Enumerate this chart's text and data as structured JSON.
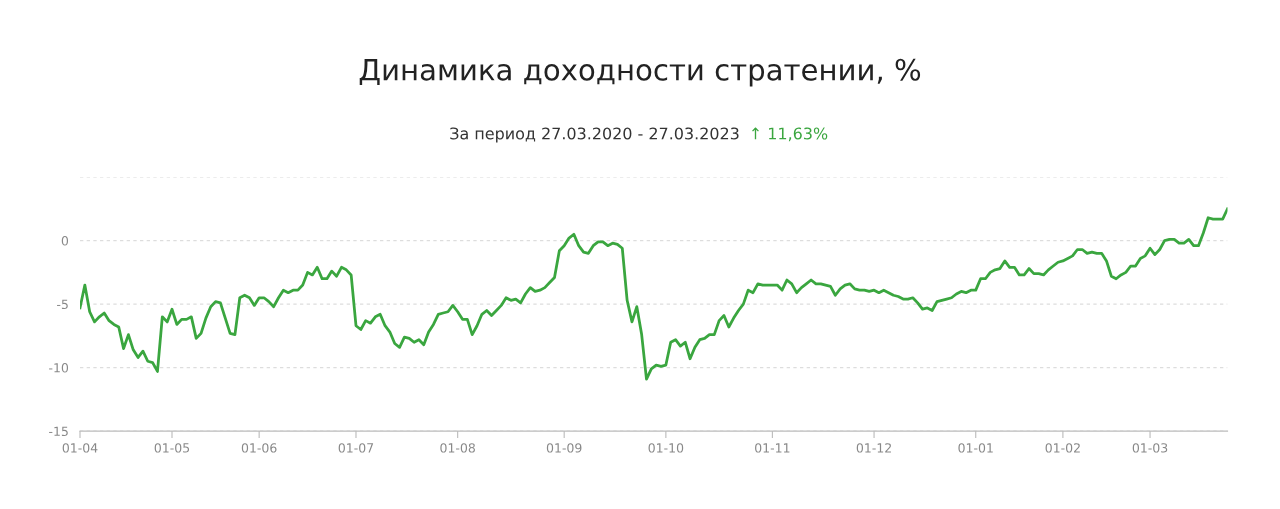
{
  "chart_data": {
    "type": "line",
    "title": "Динамика доходности стратении, %",
    "subtitle": "За период 27.03.2020 - 27.03.2023",
    "annotations": [
      "↑ 11,63%"
    ],
    "categories": [
      "01-04",
      null,
      null,
      null,
      null,
      null,
      null,
      null,
      null,
      null,
      null,
      null,
      null,
      null,
      null,
      null,
      null,
      null,
      null,
      "01-05",
      null,
      null,
      null,
      null,
      null,
      null,
      null,
      null,
      null,
      null,
      null,
      null,
      null,
      null,
      null,
      null,
      null,
      "01-06",
      null,
      null,
      null,
      null,
      null,
      null,
      null,
      null,
      null,
      null,
      null,
      null,
      null,
      null,
      null,
      null,
      null,
      null,
      null,
      "01-07",
      null,
      null,
      null,
      null,
      null,
      null,
      null,
      null,
      null,
      null,
      null,
      null,
      null,
      null,
      null,
      null,
      null,
      null,
      null,
      null,
      "01-08",
      null,
      null,
      null,
      null,
      null,
      null,
      null,
      null,
      null,
      null,
      null,
      null,
      null,
      null,
      null,
      null,
      null,
      null,
      null,
      null,
      null,
      "01-09",
      null,
      null,
      null,
      null,
      null,
      null,
      null,
      null,
      null,
      null,
      null,
      null,
      null,
      null,
      null,
      null,
      null,
      null,
      null,
      null,
      "01-10",
      null,
      null,
      null,
      null,
      null,
      null,
      null,
      null,
      null,
      null,
      null,
      null,
      null,
      null,
      null,
      null,
      null,
      null,
      null,
      null,
      null,
      "01-11",
      null,
      null,
      null,
      null,
      null,
      null,
      null,
      null,
      null,
      null,
      null,
      null,
      null,
      null,
      null,
      null,
      null,
      null,
      null,
      null,
      "01-12",
      null,
      null,
      null,
      null,
      null,
      null,
      null,
      null,
      null,
      null,
      null,
      null,
      null,
      null,
      null,
      null,
      null,
      null,
      null,
      null,
      "01-01",
      null,
      null,
      null,
      null,
      null,
      null,
      null,
      null,
      null,
      null,
      null,
      null,
      null,
      null,
      null,
      null,
      null,
      "01-02",
      null,
      null,
      null,
      null,
      null,
      null,
      null,
      null,
      null,
      null,
      null,
      null,
      null,
      null,
      null,
      null,
      null,
      "01-03",
      null,
      null,
      null,
      null,
      null,
      null,
      null,
      null,
      null,
      null,
      null,
      null,
      null,
      null,
      null,
      null
    ],
    "series": [
      {
        "color": "#3aa63f",
        "values": [
          -5.3,
          -3.5,
          -5.6,
          -6.4,
          -6.0,
          -5.7,
          -6.3,
          -6.6,
          -6.8,
          -8.5,
          -7.4,
          -8.6,
          -9.2,
          -8.7,
          -9.5,
          -9.6,
          -10.3,
          -6.0,
          -6.4,
          -5.4,
          -6.6,
          -6.2,
          -6.2,
          -6.0,
          -7.7,
          -7.3,
          -6.1,
          -5.2,
          -4.8,
          -4.9,
          -6.1,
          -7.3,
          -7.4,
          -4.5,
          -4.3,
          -4.5,
          -5.1,
          -4.5,
          -4.5,
          -4.8,
          -5.2,
          -4.5,
          -3.9,
          -4.1,
          -3.9,
          -3.9,
          -3.5,
          -2.5,
          -2.7,
          -2.1,
          -3.0,
          -3.0,
          -2.4,
          -2.8,
          -2.1,
          -2.3,
          -2.7,
          -6.7,
          -7.0,
          -6.3,
          -6.5,
          -6.0,
          -5.8,
          -6.7,
          -7.2,
          -8.1,
          -8.4,
          -7.6,
          -7.7,
          -8.0,
          -7.8,
          -8.2,
          -7.2,
          -6.6,
          -5.8,
          -5.7,
          -5.6,
          -5.1,
          -5.6,
          -6.2,
          -6.2,
          -7.4,
          -6.7,
          -5.8,
          -5.5,
          -5.9,
          -5.5,
          -5.1,
          -4.5,
          -4.7,
          -4.6,
          -4.9,
          -4.2,
          -3.7,
          -4.0,
          -3.9,
          -3.7,
          -3.3,
          -2.9,
          -0.8,
          -0.4,
          0.2,
          0.5,
          -0.4,
          -0.9,
          -1.0,
          -0.4,
          -0.1,
          -0.1,
          -0.4,
          -0.2,
          -0.3,
          -0.6,
          -4.7,
          -6.4,
          -5.2,
          -7.4,
          -10.9,
          -10.1,
          -9.8,
          -9.9,
          -9.8,
          -8.0,
          -7.8,
          -8.3,
          -8.0,
          -9.3,
          -8.4,
          -7.8,
          -7.7,
          -7.4,
          -7.4,
          -6.3,
          -5.9,
          -6.8,
          -6.1,
          -5.5,
          -5.0,
          -3.9,
          -4.1,
          -3.4,
          -3.5,
          -3.5,
          -3.5,
          -3.5,
          -3.9,
          -3.1,
          -3.4,
          -4.1,
          -3.7,
          -3.4,
          -3.1,
          -3.4,
          -3.4,
          -3.5,
          -3.6,
          -4.3,
          -3.8,
          -3.5,
          -3.4,
          -3.8,
          -3.9,
          -3.9,
          -4.0,
          -3.9,
          -4.1,
          -3.9,
          -4.1,
          -4.3,
          -4.4,
          -4.6,
          -4.6,
          -4.5,
          -4.9,
          -5.4,
          -5.3,
          -5.5,
          -4.8,
          -4.7,
          -4.6,
          -4.5,
          -4.2,
          -4.0,
          -4.1,
          -3.9,
          -3.9,
          -3.0,
          -3.0,
          -2.5,
          -2.3,
          -2.2,
          -1.6,
          -2.1,
          -2.1,
          -2.7,
          -2.7,
          -2.2,
          -2.6,
          -2.6,
          -2.7,
          -2.3,
          -2.0,
          -1.7,
          -1.6,
          -1.4,
          -1.2,
          -0.7,
          -0.7,
          -1.0,
          -0.9,
          -1.0,
          -1.0,
          -1.6,
          -2.8,
          -3.0,
          -2.7,
          -2.5,
          -2.0,
          -2.0,
          -1.4,
          -1.2,
          -0.6,
          -1.1,
          -0.7,
          0.0,
          0.1,
          0.1,
          -0.2,
          -0.2,
          0.1,
          -0.4,
          -0.4,
          0.6,
          1.8,
          1.7,
          1.7,
          1.7,
          2.5
        ]
      }
    ],
    "ylim": [
      -15,
      5
    ],
    "yticks": [
      -15,
      -10,
      -5,
      0,
      {
        "value": 5,
        "label": null
      }
    ],
    "grid": "y",
    "marker": "none",
    "line_style": "solid"
  }
}
